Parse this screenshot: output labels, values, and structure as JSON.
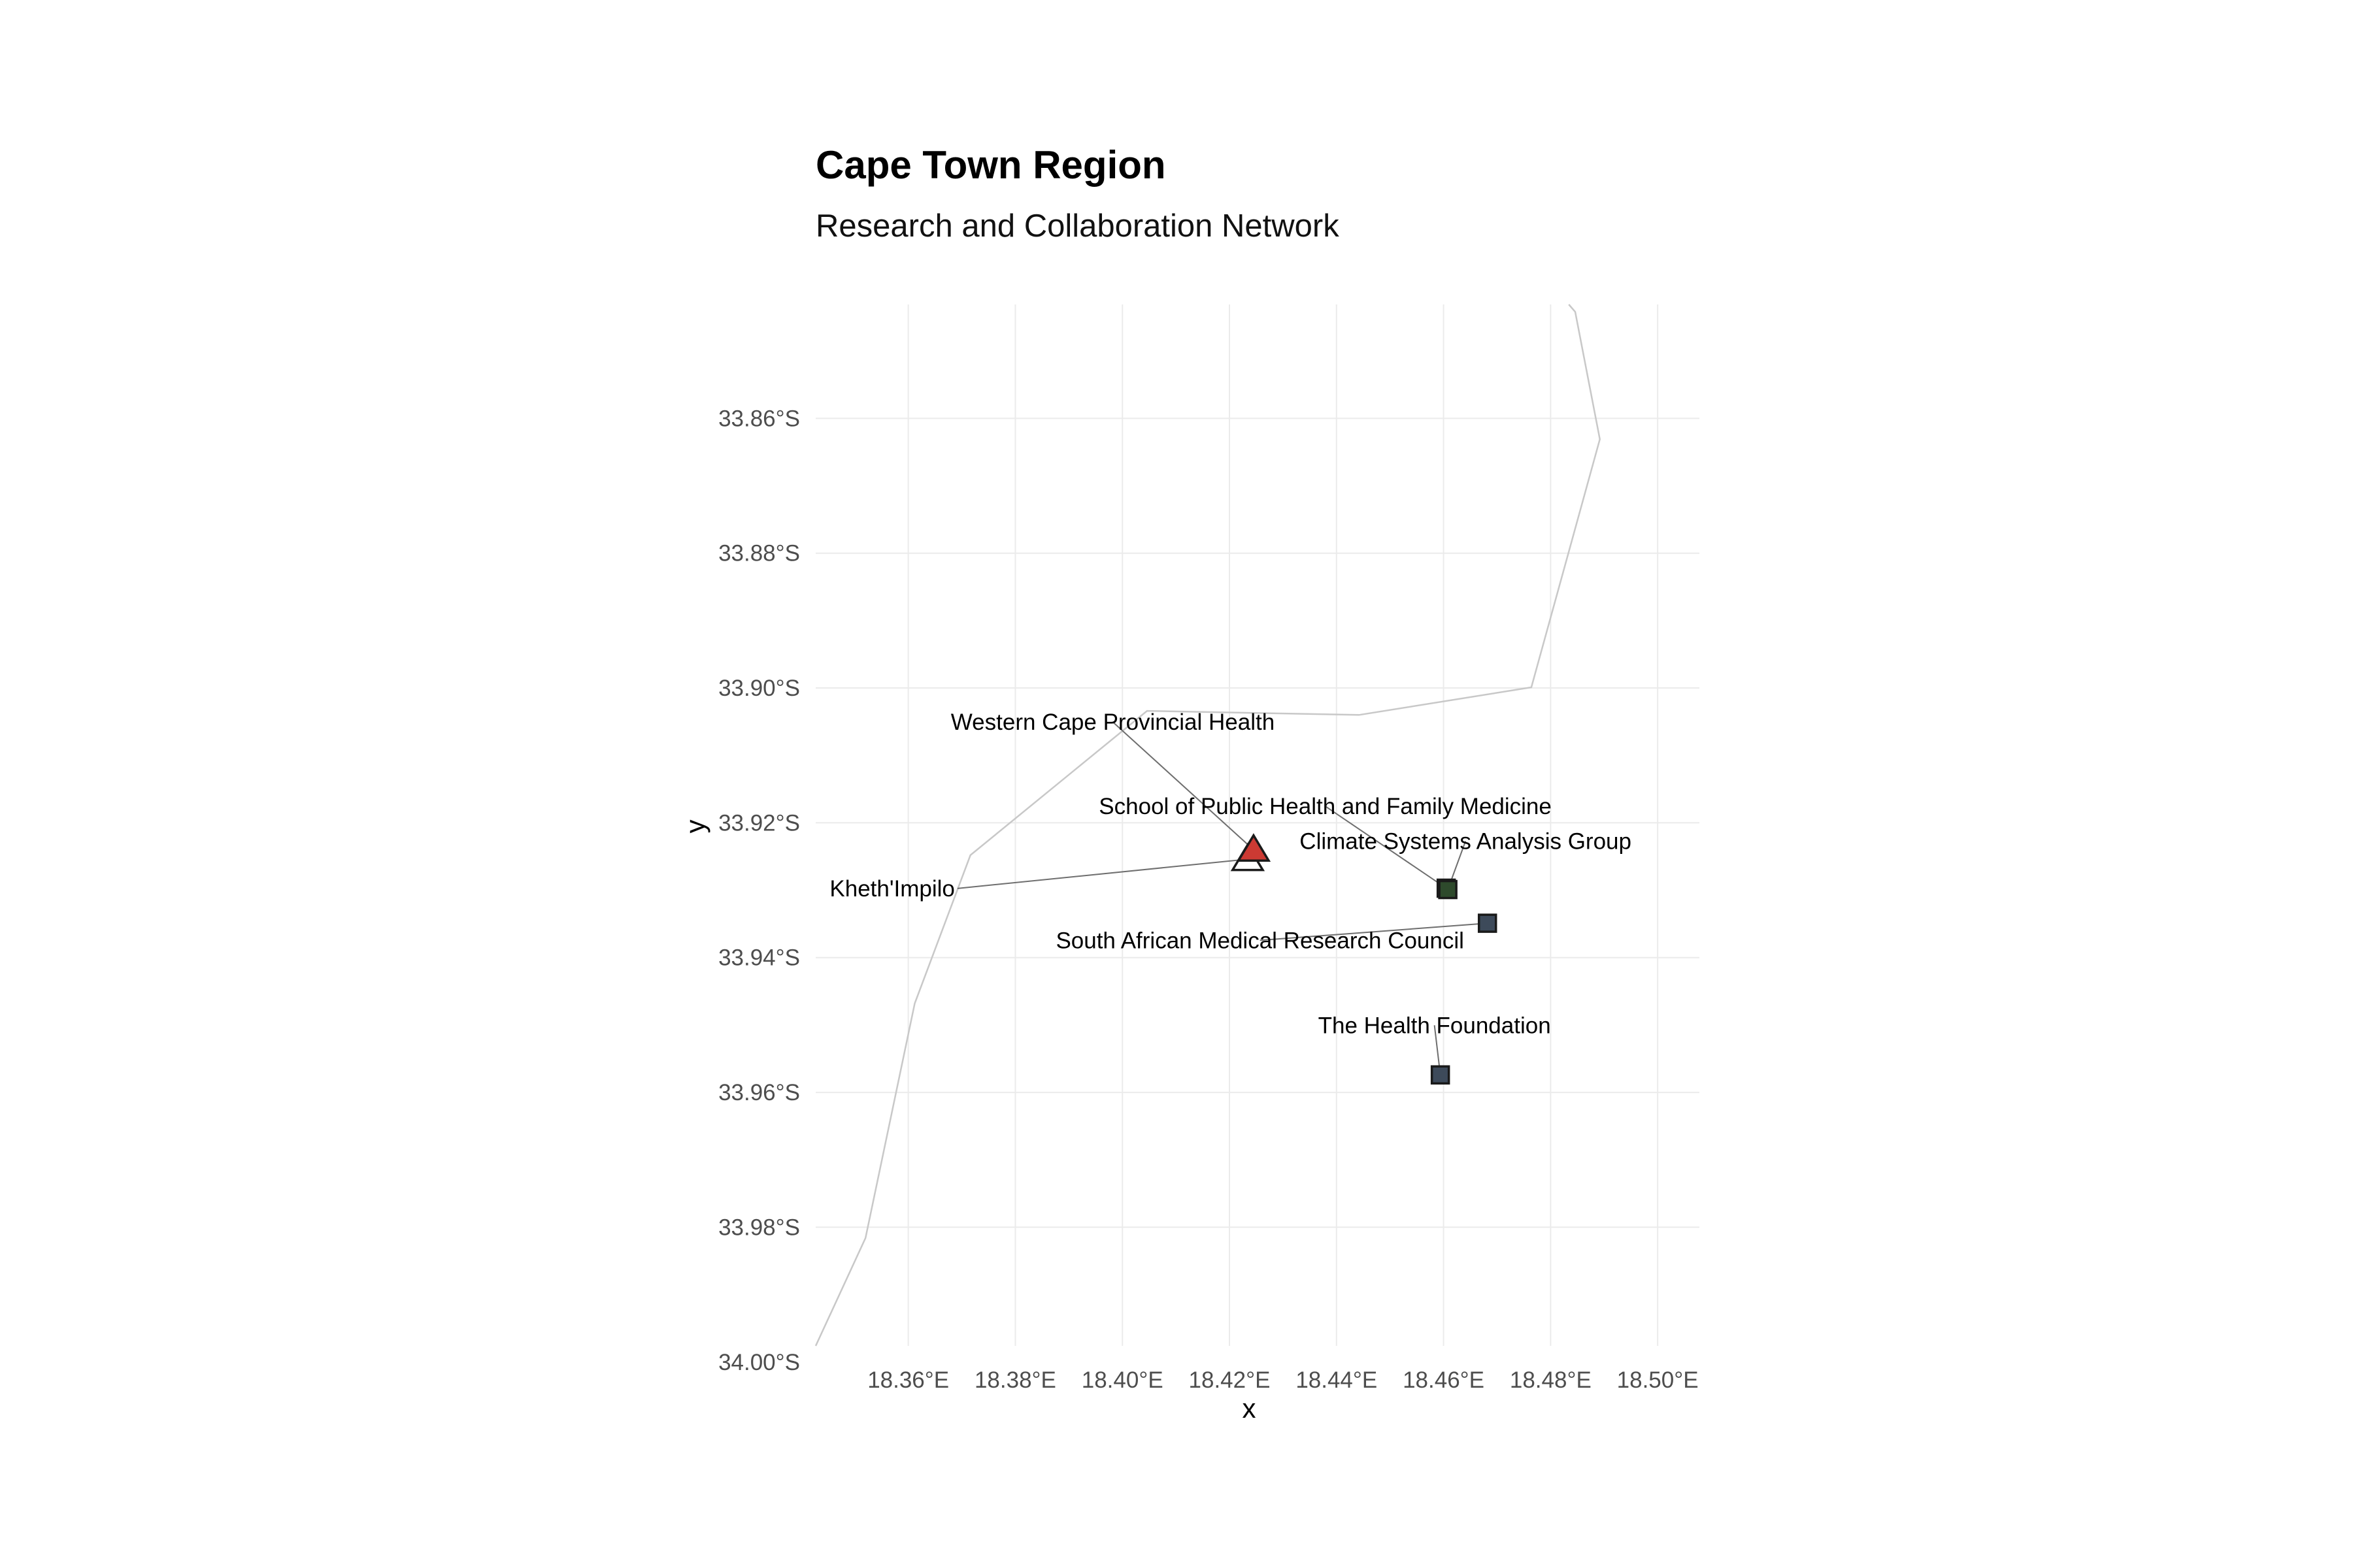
{
  "chart_data": {
    "type": "scatter",
    "title": "Cape Town Region",
    "subtitle": "Research and Collaboration Network",
    "xlabel": "x",
    "ylabel": "y",
    "xlim": [
      18.3427,
      18.5078
    ],
    "ylim": [
      -33.9976,
      -33.8431
    ],
    "x_ticks": [
      18.36,
      18.38,
      18.4,
      18.42,
      18.44,
      18.46,
      18.48,
      18.5
    ],
    "x_tick_labels": [
      "18.36°E",
      "18.38°E",
      "18.40°E",
      "18.42°E",
      "18.44°E",
      "18.46°E",
      "18.48°E",
      "18.50°E"
    ],
    "y_ticks": [
      -33.86,
      -33.88,
      -33.9,
      -33.92,
      -33.94,
      -33.96,
      -33.98,
      -34.0
    ],
    "y_tick_labels": [
      "33.86°S",
      "33.88°S",
      "33.90°S",
      "33.92°S",
      "33.94°S",
      "33.96°S",
      "33.98°S",
      "34.00°S"
    ],
    "grid": true,
    "coastline": [
      [
        18.3427,
        -33.9976
      ],
      [
        18.352,
        -33.9816
      ],
      [
        18.3612,
        -33.9468
      ],
      [
        18.3716,
        -33.9248
      ],
      [
        18.4046,
        -33.9034
      ],
      [
        18.4442,
        -33.904
      ],
      [
        18.4764,
        -33.8999
      ],
      [
        18.4892,
        -33.8631
      ],
      [
        18.4846,
        -33.8442
      ],
      [
        18.4834,
        -33.8431
      ]
    ],
    "points": [
      {
        "name": "Kheth'Impilo",
        "lon": 18.4234,
        "lat": -33.9254,
        "shape": "triangle",
        "color": "#ffffff",
        "label_lon": 18.3687,
        "label_lat": -33.9309,
        "label_anchor": "end"
      },
      {
        "name": "Western Cape Provincial Health",
        "lon": 18.4245,
        "lat": -33.924,
        "shape": "triangle",
        "color": "#cc3a33",
        "label_lon": 18.3982,
        "label_lat": -33.9062,
        "label_anchor": "middle"
      },
      {
        "name": "School of Public Health and Family Medicine",
        "lon": 18.4605,
        "lat": -33.9297,
        "shape": "square",
        "color": "#2e4a2c",
        "label_lon": 18.4379,
        "label_lat": -33.9187,
        "label_anchor": "middle"
      },
      {
        "name": "Climate Systems Analysis Group",
        "lon": 18.4608,
        "lat": -33.9299,
        "shape": "square",
        "color": "#2e4a2c",
        "label_lon": 18.4641,
        "label_lat": -33.9239,
        "label_anchor": "middle"
      },
      {
        "name": "South African Medical Research Council",
        "lon": 18.4682,
        "lat": -33.9349,
        "shape": "square",
        "color": "#3d4a5a",
        "label_lon": 18.4257,
        "label_lat": -33.9386,
        "label_anchor": "middle"
      },
      {
        "name": "The Health Foundation",
        "lon": 18.4594,
        "lat": -33.9574,
        "shape": "square",
        "color": "#3d4a5a",
        "label_lon": 18.4583,
        "label_lat": -33.9512,
        "label_anchor": "middle"
      }
    ]
  }
}
